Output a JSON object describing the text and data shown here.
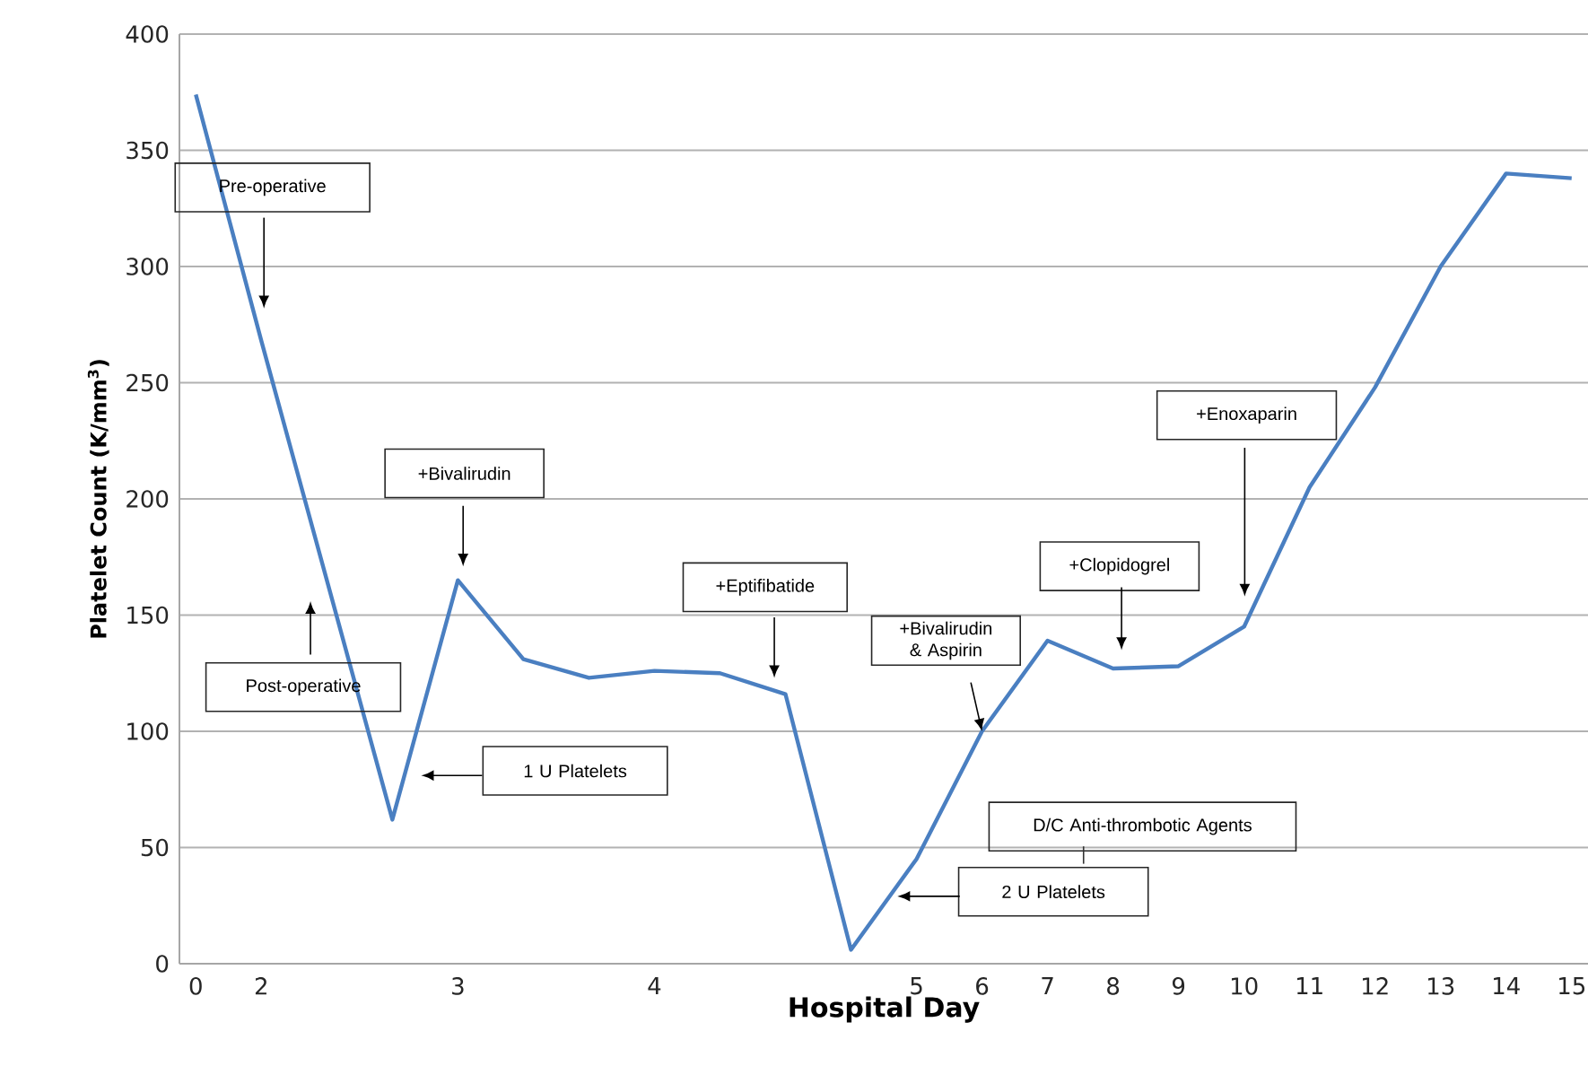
{
  "chart_data": {
    "type": "line",
    "xlabel": "Hospital Day",
    "ylabel": "Platelet Count (K/mm$^{3}$)",
    "categories": [
      "0",
      "2",
      null,
      null,
      "3",
      null,
      null,
      "4",
      null,
      null,
      null,
      "5",
      "6",
      "7",
      "8",
      "9",
      "10",
      "11",
      "12",
      "13",
      "14",
      "15"
    ],
    "series": [
      {
        "color": "#4a7fc1",
        "values": [
          374,
          268,
          165,
          62,
          165,
          131,
          123,
          126,
          125,
          116,
          6,
          45,
          100,
          139,
          127,
          128,
          145,
          205,
          248,
          300,
          340,
          338
        ]
      }
    ],
    "ylim": [
      0,
      400
    ],
    "yticks": [
      0,
      50,
      100,
      150,
      200,
      250,
      300,
      350,
      400
    ],
    "grid": "y",
    "marker": "none",
    "line_style": "solid",
    "annotations": [
      "Pre-operative",
      "Post-operative",
      "+Bivalirudin",
      "1 U Platelets",
      "+Eptifibatide",
      {
        "text": "+Bivalirudin & Aspirin",
        "x": "6",
        "y": 100
      },
      "+Clopidogrel",
      "+Enoxaparin",
      "D/C Anti-thrombotic Agents",
      "2 U Platelets"
    ]
  }
}
